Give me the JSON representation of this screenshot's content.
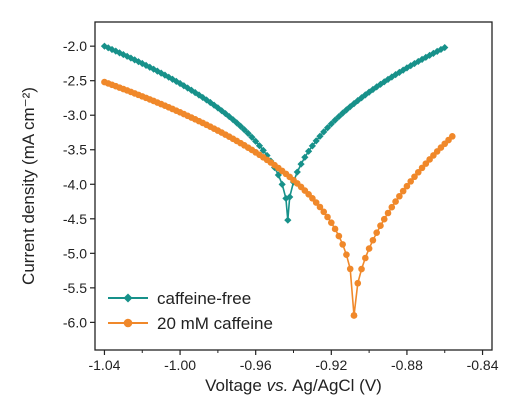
{
  "chart_data": {
    "type": "line",
    "xlabel_prefix": "Voltage ",
    "xlabel_italic": "vs.",
    "xlabel_suffix": " Ag/AgCl (V)",
    "ylabel": "Current density (mA cm⁻²)",
    "xlim": [
      -1.045,
      -0.835
    ],
    "ylim": [
      -6.4,
      -1.65
    ],
    "x_ticks": [
      -1.04,
      -1.0,
      -0.96,
      -0.92,
      -0.88,
      -0.84
    ],
    "x_tick_labels": [
      "-1.04",
      "-1.00",
      "-0.96",
      "-0.92",
      "-0.88",
      "-0.84"
    ],
    "y_ticks": [
      -2.0,
      -2.5,
      -3.0,
      -3.5,
      -4.0,
      -4.5,
      -5.0,
      -5.5,
      -6.0
    ],
    "y_tick_labels": [
      "-2.0",
      "-2.5",
      "-3.0",
      "-3.5",
      "-4.0",
      "-4.5",
      "-5.0",
      "-5.5",
      "-6.0"
    ],
    "legend_position": "bottom-left",
    "series": [
      {
        "name": "caffeine-free",
        "color": "#17918a",
        "marker": "diamond",
        "corr_x": -0.943,
        "corr_y": -4.52,
        "x_start": -1.04,
        "x_end": -0.86,
        "y_left": -2.0,
        "y_right": -2.02,
        "left_shape": 2.2,
        "right_shape": 2.2,
        "step": 0.002
      },
      {
        "name": "20 mM caffeine",
        "color": "#f0882a",
        "marker": "circle",
        "corr_x": -0.908,
        "corr_y": -5.9,
        "x_start": -1.04,
        "x_end": -0.855,
        "y_left": -2.52,
        "y_right": -3.28,
        "left_shape": 2.6,
        "right_shape": 1.9,
        "step": 0.002
      }
    ]
  }
}
